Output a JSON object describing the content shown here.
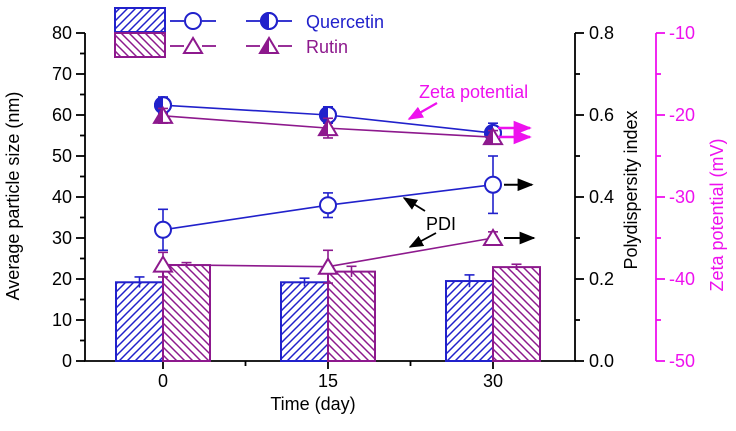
{
  "colors": {
    "quercetin_blue": "#2121cb",
    "rutin_purple": "#8d198d",
    "zeta_magenta": "#ee11ee",
    "axis_black": "#000000"
  },
  "legend": {
    "items": [
      {
        "label": "Quercetin",
        "swatch": "blue-diagonal-hatch",
        "markers": [
          "open-circle",
          "half-filled-circle"
        ]
      },
      {
        "label": "Rutin",
        "swatch": "purple-diagonal-hatch",
        "markers": [
          "open-triangle",
          "half-filled-triangle"
        ]
      }
    ]
  },
  "chart_data": {
    "type": "bar+line",
    "x": [
      0,
      15,
      30
    ],
    "x_tick_labels": [
      "0",
      "15",
      "30"
    ],
    "xlabel": "Time (day)",
    "axes": {
      "left": {
        "label": "Average particle size (nm)",
        "min": 0,
        "max": 80,
        "major_ticks": [
          0,
          10,
          20,
          30,
          40,
          50,
          60,
          70,
          80
        ],
        "tick_labels": [
          "0",
          "10",
          "20",
          "30",
          "40",
          "50",
          "60",
          "70",
          "80"
        ]
      },
      "right_pdi": {
        "label": "Polydispersity index",
        "min": 0.0,
        "max": 0.8,
        "major_ticks": [
          0.0,
          0.2,
          0.4,
          0.6,
          0.8
        ],
        "tick_labels": [
          "0.0",
          "0.2",
          "0.4",
          "0.6",
          "0.8"
        ]
      },
      "right_zeta": {
        "label": "Zeta potential (mV)",
        "min": -50,
        "max": -10,
        "major_ticks": [
          -10,
          -20,
          -30,
          -40,
          -50
        ],
        "tick_labels": [
          "-10",
          "-20",
          "-30",
          "-40",
          "-50"
        ]
      }
    },
    "bars": {
      "axis": "left",
      "unit": "nm",
      "series": [
        {
          "name": "Quercetin",
          "values": [
            19.2,
            19.2,
            19.5
          ],
          "errors": [
            1.3,
            1.0,
            1.5
          ],
          "hatch": "/"
        },
        {
          "name": "Rutin",
          "values": [
            23.4,
            21.8,
            22.9
          ],
          "errors": [
            0.6,
            1.3,
            0.7
          ],
          "hatch": "\\"
        }
      ]
    },
    "pdi_lines": {
      "axis": "right_pdi",
      "series": [
        {
          "name": "Quercetin",
          "marker": "open-circle",
          "values": [
            0.32,
            0.38,
            0.43
          ],
          "errors": [
            0.05,
            0.03,
            0.07
          ]
        },
        {
          "name": "Rutin",
          "marker": "open-triangle",
          "values": [
            0.235,
            0.23,
            0.3
          ],
          "errors": [
            0.03,
            0.04,
            0.015
          ]
        }
      ]
    },
    "zeta_lines": {
      "axis": "right_zeta",
      "unit": "mV",
      "series": [
        {
          "name": "Quercetin",
          "marker": "half-filled-circle",
          "values": [
            -18.8,
            -20.0,
            -22.2
          ],
          "errors": [
            1.0,
            1.0,
            1.2
          ]
        },
        {
          "name": "Rutin",
          "marker": "half-filled-triangle",
          "values": [
            -20.1,
            -21.6,
            -22.7
          ],
          "errors": [
            0.9,
            1.2,
            0.8
          ]
        }
      ]
    },
    "annotations": [
      {
        "text": "Zeta potential",
        "color": "#ee11ee",
        "points_to": "zeta-quercetin-line"
      },
      {
        "text": "PDI",
        "color": "#000000",
        "points_to": "pdi-lines"
      }
    ]
  }
}
